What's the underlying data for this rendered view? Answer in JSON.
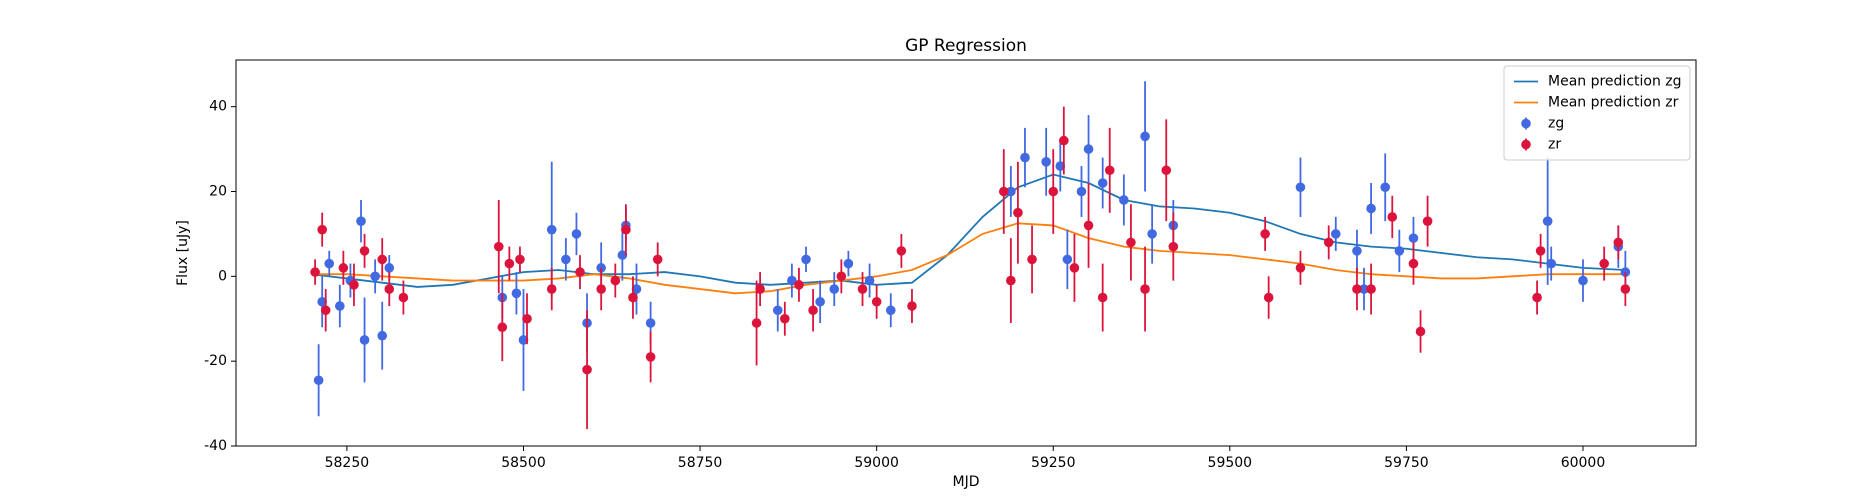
{
  "chart_data": {
    "type": "line",
    "title": "GP Regression",
    "x_label": "MJD",
    "y_label": "Flux [uJy]",
    "xlim": [
      58093,
      60160
    ],
    "ylim": [
      -40,
      51
    ],
    "xticks": [
      58250,
      58500,
      58750,
      59000,
      59250,
      59500,
      59750,
      60000
    ],
    "yticks": [
      -40,
      -20,
      0,
      20,
      40
    ],
    "legend": "upper right",
    "series": [
      {
        "name": "Mean prediction zg",
        "type": "line",
        "color": "#1f77b4",
        "x": [
          58200,
          58250,
          58300,
          58350,
          58400,
          58450,
          58500,
          58550,
          58600,
          58650,
          58700,
          58750,
          58800,
          58850,
          58900,
          58950,
          59000,
          59050,
          59100,
          59150,
          59200,
          59250,
          59300,
          59350,
          59400,
          59450,
          59500,
          59550,
          59600,
          59650,
          59700,
          59750,
          59800,
          59850,
          59900,
          59950,
          60000,
          60060
        ],
        "values": [
          0.5,
          -0.5,
          -1.5,
          -2.5,
          -2,
          -0.5,
          1,
          1.5,
          0.5,
          0.5,
          1,
          0,
          -1.5,
          -2,
          -1.5,
          -1,
          -2,
          -1.5,
          5,
          14,
          21,
          24,
          22,
          18,
          16.5,
          16,
          15,
          13,
          10,
          8,
          7,
          6.5,
          5.5,
          4.5,
          4,
          3,
          2,
          1.5
        ]
      },
      {
        "name": "Mean prediction zr",
        "type": "line",
        "color": "#ff7f0e",
        "x": [
          58200,
          58250,
          58300,
          58350,
          58400,
          58450,
          58500,
          58550,
          58600,
          58650,
          58700,
          58750,
          58800,
          58850,
          58900,
          58950,
          59000,
          59050,
          59100,
          59150,
          59200,
          59250,
          59300,
          59350,
          59400,
          59450,
          59500,
          59550,
          59600,
          59650,
          59700,
          59750,
          59800,
          59850,
          59900,
          59950,
          60000,
          60060
        ],
        "values": [
          0.5,
          0.5,
          0,
          -0.5,
          -1,
          -1,
          -1,
          -0.5,
          0.5,
          -0.5,
          -2,
          -3,
          -4,
          -3.5,
          -2,
          -1,
          0,
          1.5,
          5,
          10,
          12.5,
          12,
          9,
          7,
          6,
          5.5,
          5,
          4,
          3,
          1.5,
          0.5,
          0,
          -0.5,
          -0.5,
          0,
          0.5,
          0.5,
          0.5
        ]
      },
      {
        "name": "zg",
        "type": "errorbar",
        "color": "#4169e1",
        "x": [
          58210,
          58215,
          58225,
          58240,
          58255,
          58270,
          58275,
          58290,
          58300,
          58310,
          58470,
          58490,
          58500,
          58540,
          58560,
          58575,
          58590,
          58610,
          58640,
          58645,
          58660,
          58680,
          58860,
          58880,
          58900,
          58920,
          58940,
          58960,
          58990,
          59020,
          59190,
          59210,
          59240,
          59260,
          59270,
          59290,
          59300,
          59320,
          59350,
          59380,
          59390,
          59420,
          59600,
          59650,
          59680,
          59690,
          59700,
          59720,
          59740,
          59760,
          59950,
          59955,
          60000,
          60050,
          60060
        ],
        "values": [
          -24.5,
          -6,
          3,
          -7,
          -1,
          13,
          -15,
          0,
          -14,
          2,
          -5,
          -4,
          -15,
          11,
          4,
          10,
          -11,
          2,
          5,
          12,
          -3,
          -11,
          -8,
          -1,
          4,
          -6,
          -3,
          3,
          -1,
          -8,
          20,
          28,
          27,
          26,
          4,
          20,
          30,
          22,
          18,
          33,
          10,
          12,
          21,
          10,
          6,
          -3,
          16,
          21,
          6,
          9,
          13,
          3,
          -1,
          7,
          1
        ],
        "errors": [
          8.5,
          6,
          3,
          5,
          4,
          5,
          10,
          4,
          8,
          3,
          5,
          5,
          12,
          16,
          5,
          5,
          7,
          6,
          6,
          4,
          6,
          5,
          5,
          4,
          3,
          5,
          4,
          3,
          4,
          4,
          6,
          7,
          8,
          6,
          7,
          6,
          8,
          6,
          6,
          13,
          7,
          6,
          7,
          4,
          5,
          5,
          6,
          8,
          5,
          5,
          15,
          4,
          5,
          5,
          5
        ]
      },
      {
        "name": "zr",
        "type": "errorbar",
        "color": "#dc143c",
        "x": [
          58205,
          58215,
          58220,
          58245,
          58260,
          58275,
          58300,
          58310,
          58330,
          58465,
          58470,
          58480,
          58495,
          58505,
          58540,
          58580,
          58590,
          58610,
          58630,
          58645,
          58655,
          58680,
          58690,
          58830,
          58835,
          58870,
          58890,
          58910,
          58950,
          58980,
          59000,
          59035,
          59050,
          59180,
          59190,
          59200,
          59220,
          59250,
          59265,
          59280,
          59300,
          59320,
          59330,
          59360,
          59380,
          59410,
          59420,
          59550,
          59555,
          59600,
          59640,
          59680,
          59700,
          59730,
          59760,
          59770,
          59780,
          59935,
          59940,
          60030,
          60050,
          60060
        ],
        "values": [
          1,
          11,
          -8,
          2,
          -2,
          6,
          4,
          -3,
          -5,
          7,
          -12,
          3,
          4,
          -10,
          -3,
          1,
          -22,
          -3,
          -1,
          11,
          -5,
          -19,
          4,
          -11,
          -3,
          -10,
          -2,
          -8,
          0,
          -3,
          -6,
          6,
          -7,
          20,
          -1,
          15,
          4,
          20,
          32,
          2,
          12,
          -5,
          25,
          8,
          -3,
          25,
          7,
          10,
          -5,
          2,
          8,
          -3,
          -3,
          14,
          3,
          -13,
          13,
          -5,
          6,
          3,
          8,
          -3
        ],
        "errors": [
          3,
          4,
          5,
          4,
          5,
          4,
          5,
          4,
          4,
          11,
          8,
          4,
          3,
          6,
          5,
          4,
          14,
          5,
          4,
          6,
          5,
          6,
          4,
          10,
          4,
          4,
          4,
          5,
          4,
          4,
          4,
          4,
          4,
          10,
          10,
          12,
          8,
          10,
          8,
          8,
          10,
          8,
          10,
          9,
          10,
          12,
          8,
          4,
          5,
          4,
          4,
          5,
          6,
          5,
          5,
          5,
          6,
          4,
          4,
          4,
          4,
          4
        ]
      }
    ]
  }
}
